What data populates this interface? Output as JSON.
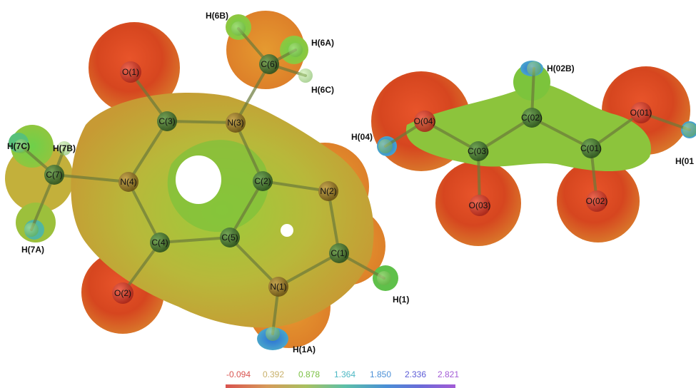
{
  "molecule_left": {
    "atoms": {
      "O1": {
        "label": "O(1)",
        "element": "O"
      },
      "C3": {
        "label": "C(3)",
        "element": "C"
      },
      "N3": {
        "label": "N(3)",
        "element": "N"
      },
      "C6": {
        "label": "C(6)",
        "element": "C"
      },
      "H6B": {
        "label": "H(6B)",
        "element": "H"
      },
      "H6A": {
        "label": "H(6A)",
        "element": "H"
      },
      "H6C": {
        "label": "H(6C)",
        "element": "H"
      },
      "H7C": {
        "label": "H(7C)",
        "element": "H"
      },
      "H7B": {
        "label": "H(7B)",
        "element": "H"
      },
      "C7": {
        "label": "C(7)",
        "element": "C"
      },
      "N4": {
        "label": "N(4)",
        "element": "N"
      },
      "C2": {
        "label": "C(2)",
        "element": "C"
      },
      "N2": {
        "label": "N(2)",
        "element": "N"
      },
      "H7A": {
        "label": "H(7A)",
        "element": "H"
      },
      "C4": {
        "label": "C(4)",
        "element": "C"
      },
      "C5": {
        "label": "C(5)",
        "element": "C"
      },
      "C1": {
        "label": "C(1)",
        "element": "C"
      },
      "N1": {
        "label": "N(1)",
        "element": "N"
      },
      "H1": {
        "label": "H(1)",
        "element": "H"
      },
      "O2": {
        "label": "O(2)",
        "element": "O"
      },
      "H1A": {
        "label": "H(1A)",
        "element": "H"
      }
    }
  },
  "molecule_right": {
    "atoms": {
      "H02B": {
        "label": "H(02B)",
        "element": "H"
      },
      "O04": {
        "label": "O(04)",
        "element": "O"
      },
      "C02": {
        "label": "C(02)",
        "element": "C"
      },
      "O01": {
        "label": "O(01)",
        "element": "O"
      },
      "H04": {
        "label": "H(04)",
        "element": "H"
      },
      "C03": {
        "label": "C(03)",
        "element": "C"
      },
      "C01": {
        "label": "C(01)",
        "element": "C"
      },
      "H01": {
        "label": "H(01",
        "element": "H"
      },
      "O03": {
        "label": "O(03)",
        "element": "O"
      },
      "O02": {
        "label": "O(02)",
        "element": "O"
      }
    }
  },
  "legend": {
    "values": [
      "-0.094",
      "0.392",
      "0.878",
      "1.364",
      "1.850",
      "2.336",
      "2.821"
    ],
    "value_colors": [
      "#d9534f",
      "#c8b06a",
      "#7bc043",
      "#4cb8c4",
      "#4a8fd6",
      "#5b5bd6",
      "#a35bd6"
    ]
  },
  "colors": {
    "surface_red": "#d4401f",
    "surface_orange": "#e0862a",
    "surface_yellow": "#c9b33a",
    "surface_green": "#6fbf3a",
    "surface_blue": "#2f7fd8",
    "atom_O": "#c0392b",
    "atom_N": "#8a6d1a",
    "atom_C": "#3d6b2a",
    "atom_H": "#8fcf6a"
  }
}
